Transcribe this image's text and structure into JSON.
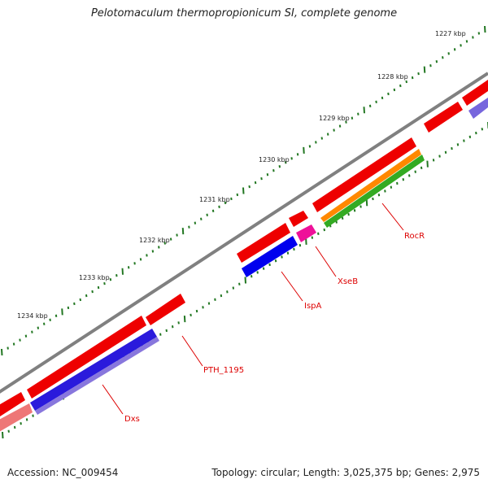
{
  "title": "Pelotomaculum thermopropionicum SI, complete genome",
  "footer": {
    "accession": "Accession: NC_009454",
    "summary": "Topology: circular; Length: 3,025,375 bp; Genes: 2,975"
  },
  "ticks": [
    "1227 kbp",
    "1228 kbp",
    "1229 kbp",
    "1230 kbp",
    "1231 kbp",
    "1232 kbp",
    "1233 kbp",
    "1234 kbp"
  ],
  "genes": [
    {
      "name": "RocR",
      "color": "#33aa22"
    },
    {
      "name": "XseB",
      "color": "#ee1199"
    },
    {
      "name": "IspA",
      "color": "#0000ee"
    },
    {
      "name": "PTH_1195",
      "color": "#ff0000"
    },
    {
      "name": "Dxs",
      "color": "#1a1acc"
    }
  ],
  "colors": {
    "backbone": "#808080",
    "cds": "#ee0000",
    "orange": "#ff8800",
    "purple": "#7766dd",
    "pink": "#ee7777",
    "tick": "#227722",
    "label_line": "#dd0000"
  }
}
